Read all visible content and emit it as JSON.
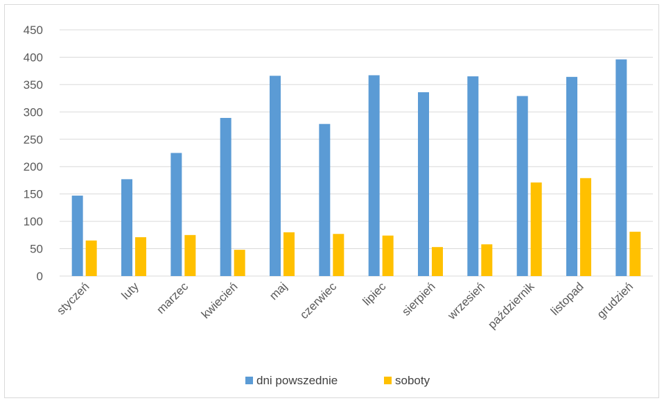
{
  "chart_data": {
    "type": "bar",
    "title": "",
    "xlabel": "",
    "ylabel": "",
    "ylim": [
      0,
      450
    ],
    "yticks": [
      0,
      50,
      100,
      150,
      200,
      250,
      300,
      350,
      400,
      450
    ],
    "grid": true,
    "legend_position": "bottom",
    "categories": [
      "styczeń",
      "luty",
      "marzec",
      "kwiecień",
      "maj",
      "czerwiec",
      "lipiec",
      "sierpień",
      "wrzesień",
      "październik",
      "listopad",
      "grudzień"
    ],
    "series": [
      {
        "name": "dni powszednie",
        "color": "#5b9bd5",
        "values": [
          147,
          177,
          225,
          289,
          366,
          278,
          367,
          336,
          365,
          329,
          364,
          396
        ]
      },
      {
        "name": "soboty",
        "color": "#ffc000",
        "values": [
          65,
          71,
          75,
          48,
          80,
          77,
          74,
          53,
          58,
          171,
          179,
          81
        ]
      }
    ]
  }
}
